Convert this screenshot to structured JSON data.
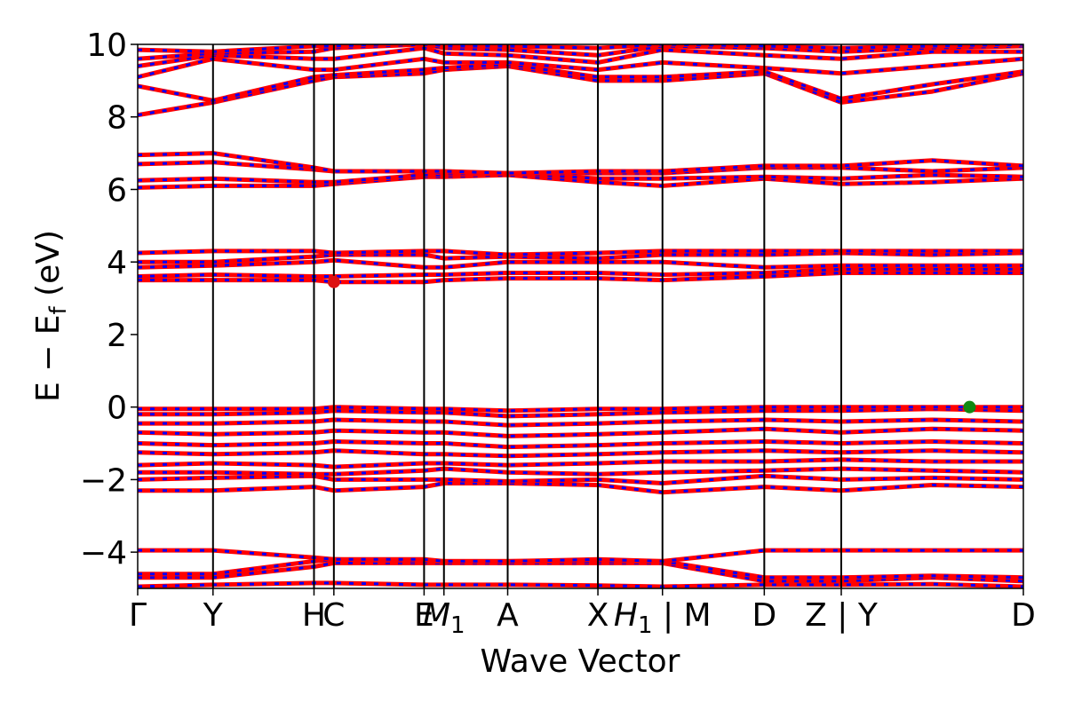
{
  "chart_data": {
    "type": "line",
    "title": "",
    "xlabel": "Wave Vector",
    "ylabel": "E − E_f (eV)",
    "ylim": [
      -5,
      10
    ],
    "yticks": [
      -4,
      -2,
      0,
      2,
      4,
      6,
      8,
      10
    ],
    "ytick_labels": [
      "−4",
      "−2",
      "0",
      "2",
      "4",
      "6",
      "8",
      "10"
    ],
    "kpath": {
      "range": [
        0,
        10.7
      ],
      "ticks": [
        {
          "k": 0.0,
          "label": "Γ",
          "line": false
        },
        {
          "k": 0.91,
          "label": "Y",
          "line": true
        },
        {
          "k": 2.13,
          "label": "H",
          "line": true
        },
        {
          "k": 2.37,
          "label": "C",
          "line": true
        },
        {
          "k": 3.46,
          "label": "E",
          "line": true
        },
        {
          "k": 3.7,
          "label": "M1",
          "line": true
        },
        {
          "k": 4.47,
          "label": "A",
          "line": true
        },
        {
          "k": 5.56,
          "label": "X",
          "line": true
        },
        {
          "k": 6.34,
          "label": "H1 | M",
          "line": true
        },
        {
          "k": 7.57,
          "label": "D",
          "line": true
        },
        {
          "k": 8.5,
          "label": "Z | Y",
          "line": true
        },
        {
          "k": 10.7,
          "label": "D",
          "line": false
        }
      ]
    },
    "series": [
      {
        "color": "#ff0000",
        "style": "solid"
      },
      {
        "color": "#0000ff",
        "style": "dashed"
      }
    ],
    "bands": [
      {
        "k": [
          0,
          0.91,
          2.13,
          2.37,
          3.46,
          3.7,
          4.47,
          5.56,
          6.34,
          7.57,
          8.5,
          9.6,
          10.7
        ],
        "e": [
          -4.95,
          -4.9,
          -4.85,
          -4.85,
          -4.9,
          -4.9,
          -4.9,
          -4.92,
          -4.95,
          -4.9,
          -4.9,
          -4.88,
          -4.95
        ]
      },
      {
        "k": [
          0,
          0.91,
          2.13,
          2.37,
          3.46,
          3.7,
          4.47,
          5.56,
          6.34,
          7.57,
          8.5,
          9.6,
          10.7
        ],
        "e": [
          -4.7,
          -4.7,
          -4.4,
          -4.3,
          -4.3,
          -4.3,
          -4.3,
          -4.3,
          -4.3,
          -4.8,
          -4.8,
          -4.7,
          -4.8
        ]
      },
      {
        "k": [
          0,
          0.91,
          2.13,
          2.37,
          3.46,
          3.7,
          4.47,
          5.56,
          6.34,
          7.57,
          8.5,
          9.6,
          10.7
        ],
        "e": [
          -4.6,
          -4.6,
          -4.25,
          -4.2,
          -4.25,
          -4.25,
          -4.25,
          -4.25,
          -4.25,
          -4.7,
          -4.7,
          -4.65,
          -4.7
        ]
      },
      {
        "k": [
          0,
          0.91,
          2.13,
          2.37,
          3.46,
          3.7,
          4.47,
          5.56,
          6.34,
          7.57,
          8.5,
          9.6,
          10.7
        ],
        "e": [
          -3.95,
          -3.95,
          -4.15,
          -4.2,
          -4.2,
          -4.25,
          -4.25,
          -4.2,
          -4.25,
          -3.95,
          -3.95,
          -3.95,
          -3.95
        ]
      },
      {
        "k": [
          0,
          0.91,
          2.13,
          2.37,
          3.46,
          3.7,
          4.47,
          5.56,
          6.34,
          7.57,
          8.5,
          9.6,
          10.7
        ],
        "e": [
          -2.3,
          -2.3,
          -2.2,
          -2.3,
          -2.2,
          -2.1,
          -2.1,
          -2.15,
          -2.35,
          -2.2,
          -2.3,
          -2.15,
          -2.2
        ]
      },
      {
        "k": [
          0,
          0.91,
          2.13,
          2.37,
          3.46,
          3.7,
          4.47,
          5.56,
          6.34,
          7.57,
          8.5,
          9.6,
          10.7
        ],
        "e": [
          -2.0,
          -1.95,
          -1.9,
          -2.0,
          -2.0,
          -2.0,
          -2.05,
          -2.0,
          -2.1,
          -1.9,
          -2.0,
          -1.95,
          -2.0
        ]
      },
      {
        "k": [
          0,
          0.91,
          2.13,
          2.37,
          3.46,
          3.7,
          4.47,
          5.56,
          6.34,
          7.57,
          8.5,
          9.6,
          10.7
        ],
        "e": [
          -1.8,
          -1.8,
          -1.85,
          -1.85,
          -1.75,
          -1.7,
          -1.8,
          -1.85,
          -1.8,
          -1.75,
          -1.7,
          -1.75,
          -1.8
        ]
      },
      {
        "k": [
          0,
          0.91,
          2.13,
          2.37,
          3.46,
          3.7,
          4.47,
          5.56,
          6.34,
          7.57,
          8.5,
          9.6,
          10.7
        ],
        "e": [
          -1.6,
          -1.55,
          -1.6,
          -1.65,
          -1.55,
          -1.55,
          -1.6,
          -1.55,
          -1.5,
          -1.5,
          -1.45,
          -1.5,
          -1.5
        ]
      },
      {
        "k": [
          0,
          0.91,
          2.13,
          2.37,
          3.46,
          3.7,
          4.47,
          5.56,
          6.34,
          7.57,
          8.5,
          9.6,
          10.7
        ],
        "e": [
          -1.25,
          -1.3,
          -1.25,
          -1.2,
          -1.3,
          -1.3,
          -1.35,
          -1.3,
          -1.25,
          -1.2,
          -1.25,
          -1.2,
          -1.25
        ]
      },
      {
        "k": [
          0,
          0.91,
          2.13,
          2.37,
          3.46,
          3.7,
          4.47,
          5.56,
          6.34,
          7.57,
          8.5,
          9.6,
          10.7
        ],
        "e": [
          -1.0,
          -1.05,
          -1.0,
          -0.95,
          -1.0,
          -1.0,
          -1.1,
          -1.05,
          -1.0,
          -0.95,
          -1.0,
          -0.95,
          -1.0
        ]
      },
      {
        "k": [
          0,
          0.91,
          2.13,
          2.37,
          3.46,
          3.7,
          4.47,
          5.56,
          6.34,
          7.57,
          8.5,
          9.6,
          10.7
        ],
        "e": [
          -0.7,
          -0.75,
          -0.7,
          -0.65,
          -0.7,
          -0.7,
          -0.8,
          -0.75,
          -0.7,
          -0.6,
          -0.7,
          -0.6,
          -0.65
        ]
      },
      {
        "k": [
          0,
          0.91,
          2.13,
          2.37,
          3.46,
          3.7,
          4.47,
          5.56,
          6.34,
          7.57,
          8.5,
          9.6,
          10.7
        ],
        "e": [
          -0.45,
          -0.45,
          -0.4,
          -0.35,
          -0.4,
          -0.4,
          -0.5,
          -0.45,
          -0.4,
          -0.35,
          -0.4,
          -0.35,
          -0.4
        ]
      },
      {
        "k": [
          0,
          0.91,
          2.13,
          2.37,
          3.46,
          3.7,
          4.47,
          5.56,
          6.34,
          7.57,
          8.5,
          9.6,
          10.7
        ],
        "e": [
          -0.2,
          -0.2,
          -0.15,
          -0.1,
          -0.15,
          -0.15,
          -0.25,
          -0.2,
          -0.15,
          -0.1,
          -0.1,
          -0.05,
          -0.1
        ]
      },
      {
        "k": [
          0,
          0.91,
          2.13,
          2.37,
          3.46,
          3.7,
          4.47,
          5.56,
          6.34,
          7.57,
          8.5,
          9.6,
          10.7
        ],
        "e": [
          -0.05,
          -0.05,
          -0.05,
          0.0,
          -0.05,
          -0.05,
          -0.1,
          -0.05,
          -0.05,
          0.0,
          0.0,
          0.0,
          0.0
        ]
      },
      {
        "k": [
          0,
          0.91,
          2.13,
          2.37,
          3.46,
          3.7,
          4.47,
          5.56,
          6.34,
          7.57,
          8.5,
          9.6,
          10.7
        ],
        "e": [
          3.5,
          3.5,
          3.5,
          3.45,
          3.45,
          3.5,
          3.55,
          3.55,
          3.5,
          3.6,
          3.7,
          3.7,
          3.7
        ]
      },
      {
        "k": [
          0,
          0.91,
          2.13,
          2.37,
          3.46,
          3.7,
          4.47,
          5.56,
          6.34,
          7.57,
          8.5,
          9.6,
          10.7
        ],
        "e": [
          3.6,
          3.65,
          3.6,
          3.6,
          3.65,
          3.65,
          3.7,
          3.7,
          3.65,
          3.7,
          3.8,
          3.8,
          3.8
        ]
      },
      {
        "k": [
          0,
          0.91,
          2.13,
          2.37,
          3.46,
          3.7,
          4.47,
          5.56,
          6.34,
          7.57,
          8.5,
          9.6,
          10.7
        ],
        "e": [
          3.85,
          3.9,
          4.0,
          4.05,
          3.85,
          3.85,
          4.0,
          4.0,
          4.0,
          3.85,
          3.9,
          3.9,
          3.9
        ]
      },
      {
        "k": [
          0,
          0.91,
          2.13,
          2.37,
          3.46,
          3.7,
          4.47,
          5.56,
          6.34,
          7.57,
          8.5,
          9.6,
          10.7
        ],
        "e": [
          4.0,
          4.0,
          4.15,
          4.2,
          4.2,
          4.1,
          4.15,
          4.1,
          4.2,
          4.2,
          4.25,
          4.2,
          4.25
        ]
      },
      {
        "k": [
          0,
          0.91,
          2.13,
          2.37,
          3.46,
          3.7,
          4.47,
          5.56,
          6.34,
          7.57,
          8.5,
          9.6,
          10.7
        ],
        "e": [
          4.25,
          4.3,
          4.3,
          4.25,
          4.3,
          4.3,
          4.2,
          4.25,
          4.3,
          4.3,
          4.3,
          4.3,
          4.3
        ]
      },
      {
        "k": [
          0,
          0.91,
          2.13,
          2.37,
          3.46,
          3.7,
          4.47,
          5.56,
          6.34,
          7.57,
          8.5,
          9.6,
          10.7
        ],
        "e": [
          6.05,
          6.1,
          6.1,
          6.15,
          6.35,
          6.35,
          6.4,
          6.2,
          6.1,
          6.3,
          6.15,
          6.2,
          6.3
        ]
      },
      {
        "k": [
          0,
          0.91,
          2.13,
          2.37,
          3.46,
          3.7,
          4.47,
          5.56,
          6.34,
          7.57,
          8.5,
          9.6,
          10.7
        ],
        "e": [
          6.25,
          6.3,
          6.2,
          6.2,
          6.4,
          6.4,
          6.45,
          6.3,
          6.3,
          6.35,
          6.3,
          6.4,
          6.35
        ]
      },
      {
        "k": [
          0,
          0.91,
          2.13,
          2.37,
          3.46,
          3.7,
          4.47,
          5.56,
          6.34,
          7.57,
          8.5,
          9.6,
          10.7
        ],
        "e": [
          6.7,
          6.75,
          6.55,
          6.5,
          6.5,
          6.45,
          6.45,
          6.45,
          6.45,
          6.6,
          6.6,
          6.5,
          6.6
        ]
      },
      {
        "k": [
          0,
          0.91,
          2.13,
          2.37,
          3.46,
          3.7,
          4.47,
          5.56,
          6.34,
          7.57,
          8.5,
          9.6,
          10.7
        ],
        "e": [
          6.95,
          7.0,
          6.6,
          6.5,
          6.5,
          6.5,
          6.45,
          6.5,
          6.5,
          6.65,
          6.65,
          6.8,
          6.65
        ]
      },
      {
        "k": [
          0,
          0.91,
          2.13,
          2.37,
          3.46,
          3.7,
          4.47,
          5.56,
          6.34,
          7.57,
          8.5,
          9.6,
          10.7
        ],
        "e": [
          8.05,
          8.4,
          9.0,
          9.1,
          9.2,
          9.3,
          9.4,
          9.0,
          9.0,
          9.2,
          8.4,
          8.7,
          9.2
        ]
      },
      {
        "k": [
          0,
          0.91,
          2.13,
          2.37,
          3.46,
          3.7,
          4.47,
          5.56,
          6.34,
          7.57,
          8.5,
          9.6,
          10.7
        ],
        "e": [
          8.85,
          8.45,
          9.1,
          9.15,
          9.3,
          9.35,
          9.45,
          9.1,
          9.1,
          9.25,
          8.5,
          8.9,
          9.25
        ]
      },
      {
        "k": [
          0,
          0.91,
          2.13,
          2.37,
          3.46,
          3.7,
          4.47,
          5.56,
          6.34,
          7.57,
          8.5,
          9.6,
          10.7
        ],
        "e": [
          9.1,
          9.6,
          9.3,
          9.3,
          9.6,
          9.5,
          9.5,
          9.3,
          9.5,
          9.35,
          9.2,
          9.4,
          9.6
        ]
      },
      {
        "k": [
          0,
          0.91,
          2.13,
          2.37,
          3.46,
          3.7,
          4.47,
          5.56,
          6.34,
          7.57,
          8.5,
          9.6,
          10.7
        ],
        "e": [
          9.4,
          9.7,
          9.6,
          9.6,
          9.9,
          9.75,
          9.7,
          9.5,
          9.85,
          9.7,
          9.6,
          9.8,
          9.8
        ]
      },
      {
        "k": [
          0,
          0.91,
          2.13,
          2.37,
          3.46,
          3.7,
          4.47,
          5.56,
          6.34,
          7.57,
          8.5,
          9.6,
          10.7
        ],
        "e": [
          9.6,
          9.75,
          9.8,
          9.9,
          10.0,
          9.9,
          9.85,
          9.7,
          9.95,
          9.9,
          9.8,
          9.9,
          9.95
        ]
      },
      {
        "k": [
          0,
          0.91,
          2.13,
          2.37,
          3.46,
          3.7,
          4.47,
          5.56,
          6.34,
          7.57,
          8.5,
          9.6,
          10.7
        ],
        "e": [
          9.85,
          9.8,
          9.95,
          9.95,
          10.05,
          9.95,
          9.95,
          9.9,
          10.0,
          9.95,
          9.9,
          9.95,
          10.0
        ]
      }
    ],
    "markers": [
      {
        "k": 2.37,
        "e": 3.45,
        "color": "#dd1111"
      },
      {
        "k": 10.05,
        "e": 0.0,
        "color": "#118811"
      }
    ]
  }
}
